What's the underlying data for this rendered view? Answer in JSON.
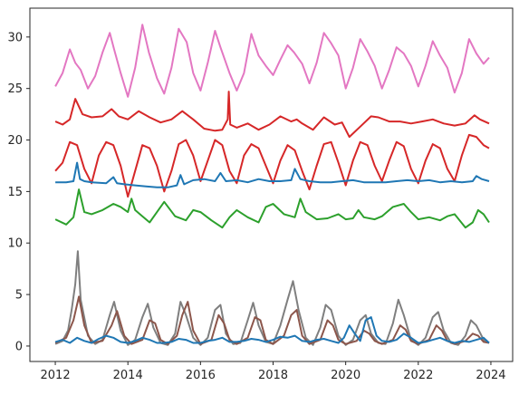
{
  "chart_data": {
    "type": "line",
    "title": "",
    "xlabel": "",
    "ylabel": "",
    "xlim": [
      2011.3,
      2024.6
    ],
    "ylim": [
      -1.5,
      32.8
    ],
    "x_ticks": [
      2012,
      2014,
      2016,
      2018,
      2020,
      2022,
      2024
    ],
    "x_tick_labels": [
      "2012",
      "2014",
      "2016",
      "2018",
      "2020",
      "2022",
      "2024"
    ],
    "y_ticks": [
      0,
      5,
      10,
      15,
      20,
      25,
      30
    ],
    "y_tick_labels": [
      "0",
      "5",
      "10",
      "15",
      "20",
      "25",
      "30"
    ],
    "grid": false,
    "legend": "none",
    "series": [
      {
        "color": "#e377c2",
        "x": [
          2012.0,
          2012.2,
          2012.4,
          2012.55,
          2012.7,
          2012.9,
          2013.1,
          2013.3,
          2013.5,
          2013.62,
          2013.8,
          2014.0,
          2014.2,
          2014.4,
          2014.58,
          2014.8,
          2015.0,
          2015.2,
          2015.4,
          2015.62,
          2015.8,
          2016.0,
          2016.2,
          2016.4,
          2016.55,
          2016.8,
          2017.0,
          2017.2,
          2017.4,
          2017.6,
          2017.8,
          2018.0,
          2018.2,
          2018.4,
          2018.58,
          2018.8,
          2019.0,
          2019.2,
          2019.4,
          2019.6,
          2019.8,
          2020.0,
          2020.2,
          2020.4,
          2020.6,
          2020.8,
          2021.0,
          2021.2,
          2021.4,
          2021.6,
          2021.8,
          2022.0,
          2022.2,
          2022.4,
          2022.6,
          2022.8,
          2023.0,
          2023.2,
          2023.4,
          2023.6,
          2023.8,
          2023.95
        ],
        "y": [
          25.2,
          26.5,
          28.8,
          27.5,
          26.8,
          25.0,
          26.2,
          28.5,
          30.4,
          28.8,
          26.5,
          24.2,
          27.0,
          31.2,
          28.5,
          26.0,
          24.5,
          27.0,
          30.8,
          29.5,
          26.5,
          24.8,
          27.5,
          30.6,
          29.0,
          26.5,
          24.8,
          26.5,
          30.3,
          28.2,
          27.2,
          26.3,
          27.8,
          29.2,
          28.5,
          27.4,
          25.5,
          27.5,
          30.4,
          29.4,
          28.2,
          25.0,
          27.0,
          29.8,
          28.6,
          27.2,
          25.0,
          26.8,
          29.0,
          28.4,
          27.2,
          25.2,
          27.2,
          29.6,
          28.2,
          27.0,
          24.6,
          26.5,
          29.8,
          28.4,
          27.4,
          28.0
        ]
      },
      {
        "color": "#d62728",
        "x": [
          2012.0,
          2012.2,
          2012.4,
          2012.55,
          2012.75,
          2013.0,
          2013.3,
          2013.55,
          2013.75,
          2014.0,
          2014.3,
          2014.6,
          2014.9,
          2015.2,
          2015.5,
          2015.8,
          2016.1,
          2016.4,
          2016.6,
          2016.75,
          2016.78,
          2016.82,
          2017.0,
          2017.3,
          2017.6,
          2017.9,
          2018.2,
          2018.5,
          2018.65,
          2018.8,
          2019.1,
          2019.4,
          2019.7,
          2019.9,
          2020.1,
          2020.4,
          2020.7,
          2020.9,
          2021.2,
          2021.5,
          2021.8,
          2022.1,
          2022.4,
          2022.7,
          2023.0,
          2023.3,
          2023.55,
          2023.7,
          2023.95
        ],
        "y": [
          21.8,
          21.5,
          22.0,
          24.0,
          22.5,
          22.2,
          22.3,
          23.0,
          22.3,
          22.0,
          22.8,
          22.2,
          21.7,
          22.0,
          22.8,
          22.0,
          21.1,
          20.9,
          21.0,
          22.0,
          24.7,
          21.5,
          21.2,
          21.6,
          21.0,
          21.5,
          22.3,
          21.8,
          22.0,
          21.6,
          21.0,
          22.2,
          21.5,
          21.7,
          20.3,
          21.3,
          22.3,
          22.2,
          21.8,
          21.8,
          21.6,
          21.8,
          22.0,
          21.6,
          21.4,
          21.6,
          22.4,
          22.0,
          21.6
        ]
      },
      {
        "color": "#d62728",
        "x": [
          2012.0,
          2012.2,
          2012.4,
          2012.6,
          2012.8,
          2013.0,
          2013.2,
          2013.4,
          2013.6,
          2013.8,
          2014.0,
          2014.2,
          2014.4,
          2014.6,
          2014.8,
          2015.0,
          2015.2,
          2015.4,
          2015.6,
          2015.8,
          2016.0,
          2016.2,
          2016.4,
          2016.6,
          2016.8,
          2017.0,
          2017.2,
          2017.4,
          2017.6,
          2017.8,
          2018.0,
          2018.2,
          2018.4,
          2018.6,
          2018.8,
          2019.0,
          2019.2,
          2019.4,
          2019.6,
          2019.8,
          2020.0,
          2020.2,
          2020.4,
          2020.6,
          2020.8,
          2021.0,
          2021.2,
          2021.4,
          2021.6,
          2021.8,
          2022.0,
          2022.2,
          2022.4,
          2022.6,
          2022.8,
          2023.0,
          2023.2,
          2023.4,
          2023.6,
          2023.8,
          2023.95
        ],
        "y": [
          17.0,
          17.8,
          19.8,
          19.5,
          17.2,
          15.8,
          18.5,
          19.8,
          19.5,
          17.5,
          14.5,
          17.0,
          19.5,
          19.2,
          17.5,
          15.0,
          17.0,
          19.6,
          20.0,
          18.5,
          16.0,
          18.0,
          20.0,
          19.5,
          17.0,
          15.8,
          18.5,
          19.6,
          19.2,
          17.5,
          15.8,
          18.0,
          19.5,
          19.0,
          17.0,
          15.2,
          17.5,
          19.6,
          19.8,
          17.8,
          15.6,
          18.0,
          19.8,
          19.5,
          17.5,
          16.0,
          18.0,
          19.8,
          19.4,
          17.2,
          15.8,
          18.0,
          19.6,
          19.2,
          17.2,
          16.0,
          18.5,
          20.5,
          20.3,
          19.5,
          19.2
        ]
      },
      {
        "color": "#1f77b4",
        "x": [
          2012.0,
          2012.3,
          2012.5,
          2012.6,
          2012.68,
          2012.8,
          2013.0,
          2013.4,
          2013.6,
          2013.7,
          2013.9,
          2014.2,
          2014.5,
          2014.8,
          2015.1,
          2015.35,
          2015.45,
          2015.55,
          2015.8,
          2016.1,
          2016.4,
          2016.55,
          2016.7,
          2017.0,
          2017.3,
          2017.6,
          2017.9,
          2018.2,
          2018.5,
          2018.6,
          2018.75,
          2019.0,
          2019.3,
          2019.6,
          2019.9,
          2020.2,
          2020.5,
          2020.8,
          2021.1,
          2021.4,
          2021.7,
          2022.0,
          2022.3,
          2022.6,
          2022.9,
          2023.2,
          2023.5,
          2023.6,
          2023.75,
          2023.95
        ],
        "y": [
          15.9,
          15.9,
          16.0,
          17.8,
          16.2,
          16.0,
          15.9,
          15.8,
          16.4,
          15.8,
          15.7,
          15.6,
          15.5,
          15.4,
          15.4,
          15.6,
          16.6,
          15.7,
          16.1,
          16.2,
          16.0,
          16.8,
          16.0,
          16.1,
          15.9,
          16.2,
          16.0,
          16.0,
          16.1,
          17.2,
          16.2,
          16.0,
          15.9,
          15.9,
          16.0,
          16.1,
          15.9,
          15.9,
          15.9,
          16.0,
          16.1,
          16.0,
          16.1,
          15.9,
          16.0,
          15.9,
          16.0,
          16.5,
          16.2,
          16.0
        ]
      },
      {
        "color": "#2ca02c",
        "x": [
          2012.0,
          2012.3,
          2012.5,
          2012.65,
          2012.8,
          2013.0,
          2013.3,
          2013.6,
          2013.8,
          2014.0,
          2014.1,
          2014.2,
          2014.4,
          2014.6,
          2014.8,
          2015.0,
          2015.3,
          2015.6,
          2015.8,
          2016.0,
          2016.3,
          2016.6,
          2016.8,
          2017.0,
          2017.3,
          2017.6,
          2017.8,
          2018.0,
          2018.3,
          2018.6,
          2018.75,
          2018.9,
          2019.2,
          2019.5,
          2019.8,
          2020.0,
          2020.2,
          2020.35,
          2020.5,
          2020.8,
          2021.0,
          2021.3,
          2021.6,
          2021.8,
          2022.0,
          2022.3,
          2022.6,
          2022.8,
          2023.0,
          2023.3,
          2023.5,
          2023.65,
          2023.8,
          2023.95
        ],
        "y": [
          12.3,
          11.8,
          12.5,
          15.2,
          13.0,
          12.8,
          13.2,
          13.8,
          13.5,
          13.0,
          14.3,
          13.2,
          12.6,
          12.0,
          13.0,
          14.0,
          12.6,
          12.2,
          13.2,
          13.0,
          12.2,
          11.5,
          12.5,
          13.2,
          12.5,
          12.0,
          13.5,
          13.8,
          12.8,
          12.5,
          14.3,
          13.0,
          12.3,
          12.4,
          12.8,
          12.3,
          12.4,
          13.2,
          12.5,
          12.3,
          12.6,
          13.5,
          13.8,
          13.0,
          12.3,
          12.5,
          12.2,
          12.6,
          12.8,
          11.5,
          12.0,
          13.2,
          12.8,
          12.0
        ]
      },
      {
        "color": "#7f7f7f",
        "x": [
          2012.0,
          2012.2,
          2012.35,
          2012.45,
          2012.55,
          2012.62,
          2012.7,
          2012.9,
          2013.1,
          2013.3,
          2013.5,
          2013.62,
          2013.8,
          2014.0,
          2014.2,
          2014.4,
          2014.55,
          2014.7,
          2014.9,
          2015.1,
          2015.3,
          2015.45,
          2015.6,
          2015.8,
          2016.0,
          2016.2,
          2016.4,
          2016.55,
          2016.7,
          2016.9,
          2017.1,
          2017.3,
          2017.45,
          2017.6,
          2017.8,
          2018.0,
          2018.2,
          2018.4,
          2018.55,
          2018.7,
          2018.9,
          2019.1,
          2019.3,
          2019.45,
          2019.6,
          2019.8,
          2020.0,
          2020.2,
          2020.4,
          2020.55,
          2020.7,
          2020.9,
          2021.1,
          2021.3,
          2021.45,
          2021.6,
          2021.8,
          2022.0,
          2022.2,
          2022.4,
          2022.55,
          2022.7,
          2022.9,
          2023.1,
          2023.3,
          2023.45,
          2023.6,
          2023.8,
          2023.95
        ],
        "y": [
          0.2,
          0.5,
          1.5,
          3.5,
          6.0,
          9.2,
          4.5,
          1.0,
          0.2,
          0.6,
          3.0,
          4.3,
          1.5,
          0.1,
          0.6,
          2.8,
          4.1,
          1.8,
          0.3,
          0.1,
          1.2,
          4.3,
          3.0,
          0.8,
          0.1,
          0.8,
          3.5,
          4.0,
          1.2,
          0.2,
          0.3,
          2.5,
          4.2,
          2.0,
          0.4,
          0.2,
          2.0,
          4.5,
          6.3,
          3.5,
          0.8,
          0.1,
          1.8,
          4.0,
          3.5,
          1.0,
          0.1,
          0.6,
          2.5,
          3.0,
          1.2,
          0.3,
          0.2,
          2.2,
          4.5,
          3.0,
          0.6,
          0.1,
          0.8,
          2.8,
          3.3,
          1.5,
          0.3,
          0.1,
          1.0,
          2.5,
          2.0,
          0.6,
          0.3
        ]
      },
      {
        "color": "#8c564b",
        "x": [
          2012.0,
          2012.3,
          2012.5,
          2012.65,
          2012.8,
          2013.0,
          2013.3,
          2013.55,
          2013.7,
          2013.9,
          2014.1,
          2014.4,
          2014.6,
          2014.75,
          2014.9,
          2015.1,
          2015.35,
          2015.5,
          2015.65,
          2015.8,
          2016.0,
          2016.3,
          2016.5,
          2016.65,
          2016.8,
          2017.0,
          2017.3,
          2017.5,
          2017.65,
          2017.8,
          2018.0,
          2018.3,
          2018.5,
          2018.65,
          2018.8,
          2019.0,
          2019.3,
          2019.5,
          2019.65,
          2019.8,
          2020.0,
          2020.3,
          2020.5,
          2020.65,
          2020.8,
          2021.0,
          2021.3,
          2021.5,
          2021.65,
          2021.8,
          2022.0,
          2022.3,
          2022.5,
          2022.65,
          2022.8,
          2023.0,
          2023.3,
          2023.5,
          2023.65,
          2023.8,
          2023.95
        ],
        "y": [
          0.3,
          0.8,
          2.5,
          4.8,
          2.0,
          0.3,
          0.5,
          2.0,
          3.4,
          1.0,
          0.2,
          0.6,
          2.5,
          2.2,
          0.6,
          0.2,
          1.0,
          3.0,
          4.3,
          1.5,
          0.2,
          0.6,
          3.0,
          2.2,
          0.6,
          0.2,
          0.8,
          2.8,
          2.5,
          0.6,
          0.2,
          1.0,
          3.0,
          3.5,
          1.0,
          0.2,
          0.6,
          2.5,
          2.0,
          0.6,
          0.2,
          0.5,
          1.5,
          1.2,
          0.5,
          0.2,
          0.6,
          2.0,
          1.6,
          0.5,
          0.2,
          0.6,
          2.0,
          1.5,
          0.5,
          0.2,
          0.5,
          1.2,
          1.0,
          0.4,
          0.3
        ]
      },
      {
        "color": "#1f77b4",
        "x": [
          2012.0,
          2012.2,
          2012.4,
          2012.6,
          2012.8,
          2013.0,
          2013.2,
          2013.4,
          2013.6,
          2013.8,
          2014.0,
          2014.2,
          2014.4,
          2014.6,
          2014.8,
          2015.0,
          2015.2,
          2015.4,
          2015.6,
          2015.8,
          2016.0,
          2016.2,
          2016.4,
          2016.6,
          2016.8,
          2017.0,
          2017.2,
          2017.4,
          2017.6,
          2017.8,
          2018.0,
          2018.2,
          2018.4,
          2018.6,
          2018.8,
          2019.0,
          2019.2,
          2019.4,
          2019.6,
          2019.8,
          2019.95,
          2020.1,
          2020.25,
          2020.4,
          2020.55,
          2020.7,
          2020.85,
          2021.0,
          2021.2,
          2021.4,
          2021.6,
          2021.8,
          2022.0,
          2022.2,
          2022.4,
          2022.6,
          2022.8,
          2023.0,
          2023.2,
          2023.4,
          2023.6,
          2023.8,
          2023.95
        ],
        "y": [
          0.4,
          0.6,
          0.3,
          0.8,
          0.5,
          0.3,
          0.7,
          1.0,
          0.8,
          0.4,
          0.3,
          0.5,
          0.8,
          0.6,
          0.3,
          0.3,
          0.4,
          0.7,
          0.6,
          0.3,
          0.3,
          0.5,
          0.6,
          0.8,
          0.4,
          0.4,
          0.5,
          0.7,
          0.6,
          0.4,
          0.6,
          0.9,
          0.8,
          1.0,
          0.5,
          0.4,
          0.6,
          0.7,
          0.5,
          0.3,
          0.8,
          2.0,
          1.2,
          0.5,
          2.5,
          2.8,
          1.0,
          0.5,
          0.4,
          0.6,
          1.2,
          0.8,
          0.3,
          0.4,
          0.6,
          0.8,
          0.5,
          0.3,
          0.5,
          0.4,
          0.6,
          0.8,
          0.3
        ]
      }
    ]
  }
}
